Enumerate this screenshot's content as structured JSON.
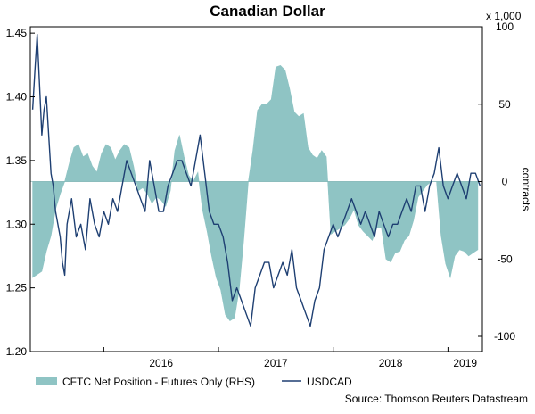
{
  "chart_data": {
    "type": "area",
    "title": "Canadian Dollar",
    "x_ticks": [
      "2016",
      "2017",
      "2018",
      "2019"
    ],
    "y_left": {
      "ticks": [
        "1.45",
        "1.40",
        "1.35",
        "1.30",
        "1.25",
        "1.20"
      ],
      "values": [
        1.45,
        1.4,
        1.35,
        1.3,
        1.25,
        1.2
      ],
      "range": [
        1.2,
        1.455
      ]
    },
    "y_right": {
      "label": "contracts",
      "unit": "x 1,000",
      "ticks": [
        "100",
        "50",
        "0",
        "-50",
        "-100"
      ],
      "values": [
        100,
        50,
        0,
        -50,
        -100
      ],
      "range": [
        -100,
        100
      ]
    },
    "grid": false,
    "legend_position": "bottom-left",
    "series": [
      {
        "name": "CFTC Net Position - Futures Only (RHS)",
        "kind": "area",
        "axis": "right",
        "color": "#8fc4c4",
        "x": [
          2015.38,
          2015.42,
          2015.46,
          2015.5,
          2015.54,
          2015.58,
          2015.62,
          2015.66,
          2015.7,
          2015.74,
          2015.78,
          2015.82,
          2015.86,
          2015.9,
          2015.94,
          2015.98,
          2016.02,
          2016.06,
          2016.1,
          2016.14,
          2016.18,
          2016.22,
          2016.26,
          2016.3,
          2016.34,
          2016.38,
          2016.42,
          2016.46,
          2016.5,
          2016.54,
          2016.58,
          2016.62,
          2016.66,
          2016.7,
          2016.74,
          2016.78,
          2016.82,
          2016.86,
          2016.9,
          2016.94,
          2016.98,
          2017.02,
          2017.06,
          2017.1,
          2017.14,
          2017.18,
          2017.22,
          2017.26,
          2017.3,
          2017.34,
          2017.38,
          2017.42,
          2017.46,
          2017.5,
          2017.54,
          2017.58,
          2017.62,
          2017.66,
          2017.7,
          2017.74,
          2017.78,
          2017.82,
          2017.86,
          2017.9,
          2017.94,
          2017.98,
          2018.02,
          2018.06,
          2018.1,
          2018.14,
          2018.18,
          2018.22,
          2018.26,
          2018.3,
          2018.34,
          2018.38,
          2018.42,
          2018.46,
          2018.5,
          2018.54,
          2018.58,
          2018.62,
          2018.66,
          2018.7,
          2018.74,
          2018.78,
          2018.82,
          2018.86,
          2018.9,
          2018.94,
          2018.98,
          2019.02,
          2019.06,
          2019.1,
          2019.14,
          2019.18,
          2019.22,
          2019.26
        ],
        "values": [
          -62,
          -60,
          -58,
          -45,
          -35,
          -18,
          -8,
          0,
          12,
          22,
          24,
          16,
          18,
          10,
          6,
          18,
          24,
          22,
          14,
          20,
          24,
          22,
          10,
          -6,
          -4,
          -8,
          -14,
          -10,
          -12,
          -16,
          -6,
          20,
          30,
          16,
          4,
          0,
          6,
          -18,
          -32,
          -48,
          -62,
          -70,
          -86,
          -90,
          -88,
          -70,
          -38,
          0,
          20,
          46,
          50,
          50,
          53,
          74,
          75,
          72,
          60,
          45,
          42,
          44,
          22,
          17,
          15,
          20,
          16,
          -34,
          -32,
          -30,
          -28,
          -24,
          -18,
          -28,
          -32,
          -35,
          -38,
          -30,
          -30,
          -50,
          -52,
          -46,
          -45,
          -38,
          -35,
          -25,
          -10,
          -6,
          -2,
          0,
          0,
          -35,
          -53,
          -62,
          -48,
          -44,
          -45,
          -48,
          -46,
          -44
        ]
      },
      {
        "name": "USDCAD",
        "kind": "line",
        "axis": "left",
        "color": "#1e3f72",
        "x": [
          2015.38,
          2015.4,
          2015.42,
          2015.44,
          2015.46,
          2015.48,
          2015.5,
          2015.52,
          2015.54,
          2015.56,
          2015.58,
          2015.6,
          2015.62,
          2015.64,
          2015.66,
          2015.68,
          2015.72,
          2015.76,
          2015.8,
          2015.84,
          2015.88,
          2015.92,
          2015.96,
          2016.0,
          2016.04,
          2016.08,
          2016.12,
          2016.16,
          2016.2,
          2016.24,
          2016.28,
          2016.32,
          2016.36,
          2016.4,
          2016.44,
          2016.48,
          2016.52,
          2016.56,
          2016.6,
          2016.64,
          2016.68,
          2016.72,
          2016.76,
          2016.8,
          2016.84,
          2016.88,
          2016.92,
          2016.96,
          2017.0,
          2017.04,
          2017.08,
          2017.12,
          2017.16,
          2017.2,
          2017.24,
          2017.28,
          2017.32,
          2017.36,
          2017.4,
          2017.44,
          2017.48,
          2017.52,
          2017.56,
          2017.6,
          2017.64,
          2017.68,
          2017.72,
          2017.76,
          2017.8,
          2017.84,
          2017.88,
          2017.92,
          2017.96,
          2018.0,
          2018.04,
          2018.08,
          2018.12,
          2018.16,
          2018.2,
          2018.24,
          2018.28,
          2018.32,
          2018.36,
          2018.4,
          2018.44,
          2018.48,
          2018.52,
          2018.56,
          2018.6,
          2018.64,
          2018.68,
          2018.72,
          2018.76,
          2018.8,
          2018.84,
          2018.88,
          2018.92,
          2018.96,
          2019.0,
          2019.04,
          2019.08,
          2019.12,
          2019.16,
          2019.2,
          2019.24,
          2019.28
        ],
        "values": [
          1.39,
          1.42,
          1.449,
          1.41,
          1.37,
          1.39,
          1.4,
          1.37,
          1.34,
          1.33,
          1.31,
          1.3,
          1.29,
          1.27,
          1.26,
          1.3,
          1.32,
          1.29,
          1.3,
          1.28,
          1.32,
          1.3,
          1.29,
          1.31,
          1.3,
          1.32,
          1.31,
          1.33,
          1.35,
          1.34,
          1.33,
          1.32,
          1.31,
          1.35,
          1.33,
          1.31,
          1.31,
          1.33,
          1.34,
          1.35,
          1.35,
          1.34,
          1.33,
          1.35,
          1.37,
          1.34,
          1.31,
          1.3,
          1.3,
          1.29,
          1.27,
          1.24,
          1.25,
          1.24,
          1.23,
          1.22,
          1.25,
          1.26,
          1.27,
          1.27,
          1.25,
          1.26,
          1.27,
          1.26,
          1.28,
          1.25,
          1.24,
          1.23,
          1.22,
          1.24,
          1.25,
          1.28,
          1.29,
          1.3,
          1.29,
          1.3,
          1.31,
          1.32,
          1.31,
          1.3,
          1.31,
          1.3,
          1.29,
          1.31,
          1.3,
          1.29,
          1.3,
          1.3,
          1.31,
          1.32,
          1.31,
          1.33,
          1.33,
          1.31,
          1.33,
          1.34,
          1.36,
          1.33,
          1.32,
          1.33,
          1.34,
          1.33,
          1.32,
          1.34,
          1.34,
          1.33
        ]
      }
    ]
  },
  "source": "Source: Thomson Reuters Datastream"
}
